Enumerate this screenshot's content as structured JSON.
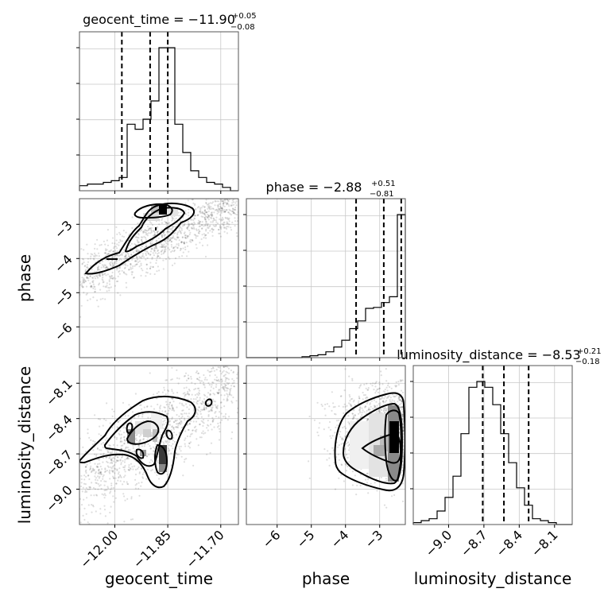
{
  "titles": {
    "geocent_time": {
      "name": "geocent_time",
      "median": "−11.90",
      "plus": "+0.05",
      "minus": "−0.08"
    },
    "phase": {
      "name": "phase",
      "median": "−2.88",
      "plus": "+0.51",
      "minus": "−0.81"
    },
    "luminosity_distance": {
      "name": "luminosity_distance",
      "median": "−8.53",
      "plus": "+0.21",
      "minus": "−0.18"
    }
  },
  "axis_labels": {
    "geocent_time": "geocent_time",
    "phase": "phase",
    "luminosity_distance": "luminosity_distance"
  },
  "chart_data": {
    "type": "corner",
    "parameters": [
      "geocent_time",
      "phase",
      "luminosity_distance"
    ],
    "ranges": {
      "geocent_time": [
        -12.1,
        -11.65
      ],
      "phase": [
        -6.9,
        -2.25
      ],
      "luminosity_distance": [
        -9.3,
        -7.95
      ]
    },
    "ticks": {
      "geocent_time": [
        "−12.00",
        "−11.85",
        "−11.70"
      ],
      "phase": [
        "−6",
        "−5",
        "−4",
        "−3"
      ],
      "luminosity_distance": [
        "−9.0",
        "−8.7",
        "−8.4",
        "−8.1"
      ]
    },
    "tick_values": {
      "geocent_time": [
        -12.0,
        -11.85,
        -11.7
      ],
      "phase": [
        -6,
        -5,
        -4,
        -3
      ],
      "luminosity_distance": [
        -9.0,
        -8.7,
        -8.4,
        -8.1
      ]
    },
    "quantiles": {
      "geocent_time": [
        -11.98,
        -11.9,
        -11.85
      ],
      "phase": [
        -3.69,
        -2.88,
        -2.37
      ],
      "luminosity_distance": [
        -8.71,
        -8.53,
        -8.32
      ]
    },
    "histograms": {
      "geocent_time": {
        "bins": 20,
        "range": [
          -12.1,
          -11.65
        ],
        "counts": [
          3,
          4,
          4,
          5,
          6,
          8,
          40,
          37,
          43,
          54,
          86,
          86,
          40,
          23,
          12,
          8,
          5,
          4,
          2,
          0
        ]
      },
      "phase": {
        "bins": 20,
        "range": [
          -6.9,
          -2.25
        ],
        "counts": [
          0,
          0,
          0,
          0,
          0,
          0,
          0,
          1,
          2,
          3,
          6,
          11,
          18,
          30,
          38,
          51,
          52,
          57,
          63,
          148
        ]
      },
      "luminosity_distance": {
        "bins": 20,
        "range": [
          -9.3,
          -7.95
        ],
        "counts": [
          1,
          2,
          3,
          7,
          14,
          25,
          47,
          71,
          74,
          71,
          62,
          47,
          32,
          19,
          10,
          3,
          2,
          1,
          0,
          0
        ]
      }
    },
    "density_peaks": [
      {
        "x": "geocent_time",
        "y": "phase",
        "peak": [
          -11.87,
          -2.5
        ]
      },
      {
        "x": "geocent_time",
        "y": "luminosity_distance",
        "peak": [
          -11.87,
          -8.65
        ]
      },
      {
        "x": "phase",
        "y": "luminosity_distance",
        "peak": [
          -2.45,
          -8.55
        ]
      }
    ],
    "grid": true
  }
}
